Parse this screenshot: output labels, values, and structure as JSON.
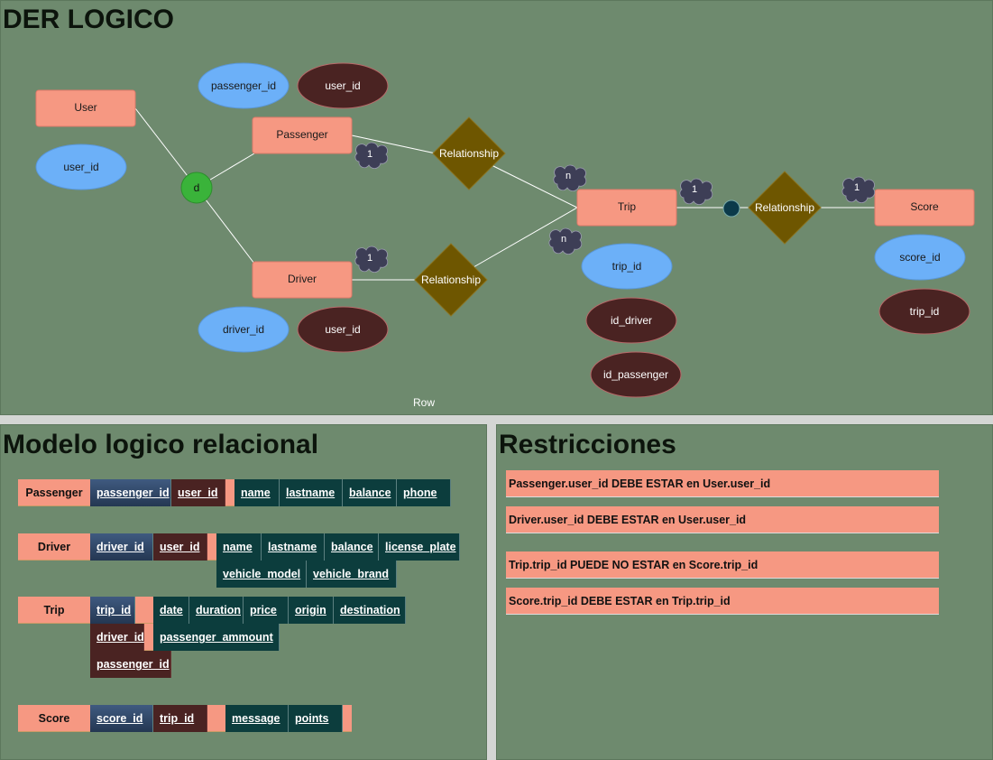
{
  "titles": {
    "der": "DER LOGICO",
    "relational": "Modelo logico relacional",
    "restrictions": "Restricciones",
    "row_label": "Row"
  },
  "colors": {
    "panel": "#6e8a6e",
    "entity": "#f69882",
    "attr_pk": "#6cb0f8",
    "attr_fk": "#4a2322",
    "relationship": "#6e5600",
    "disjoint": "#3ab33a",
    "table_attr": "#0c3d3d"
  },
  "der": {
    "entities": {
      "user": "User",
      "passenger": "Passenger",
      "driver": "Driver",
      "trip": "Trip",
      "score": "Score"
    },
    "attributes": {
      "user_user_id": "user_id",
      "passenger_pk": "passenger_id",
      "passenger_fk": "user_id",
      "driver_pk": "driver_id",
      "driver_fk": "user_id",
      "trip_pk": "trip_id",
      "trip_fk_driver": "id_driver",
      "trip_fk_passenger": "id_passenger",
      "score_pk": "score_id",
      "score_fk": "trip_id"
    },
    "relationships": {
      "passenger_trip": "Relationship",
      "driver_trip": "Relationship",
      "trip_score": "Relationship"
    },
    "disjoint_label": "d",
    "cardinalities": {
      "passenger_side": "1",
      "trip_side_top": "n",
      "driver_side": "1",
      "trip_side_bottom": "n",
      "trip_score_trip": "1",
      "trip_score_score": "1"
    }
  },
  "tables": {
    "passenger": {
      "name": "Passenger",
      "pk": [
        "passenger_id"
      ],
      "fk": [
        "user_id"
      ],
      "attrs": [
        "name",
        "lastname",
        "balance",
        "phone"
      ]
    },
    "driver": {
      "name": "Driver",
      "pk": [
        "driver_id"
      ],
      "fk": [
        "user_id"
      ],
      "attrs": [
        "name",
        "lastname",
        "balance",
        "license_plate"
      ],
      "attrs2": [
        "vehicle_model",
        "vehicle_brand"
      ]
    },
    "trip": {
      "name": "Trip",
      "pk": [
        "trip_id"
      ],
      "fk": [
        "driver_id",
        "passenger_id"
      ],
      "attrs": [
        "date",
        "duration",
        "price",
        "origin",
        "destination"
      ],
      "attrs2": [
        "passenger_ammount"
      ]
    },
    "score": {
      "name": "Score",
      "pk": [
        "score_id"
      ],
      "fk": [
        "trip_id"
      ],
      "attrs": [
        "message",
        "points"
      ]
    }
  },
  "restrictions": [
    "Passenger.user_id DEBE ESTAR en User.user_id",
    "Driver.user_id DEBE ESTAR en User.user_id",
    "Trip.trip_id PUEDE NO ESTAR en Score.trip_id",
    "Score.trip_id DEBE ESTAR en Trip.trip_id"
  ]
}
